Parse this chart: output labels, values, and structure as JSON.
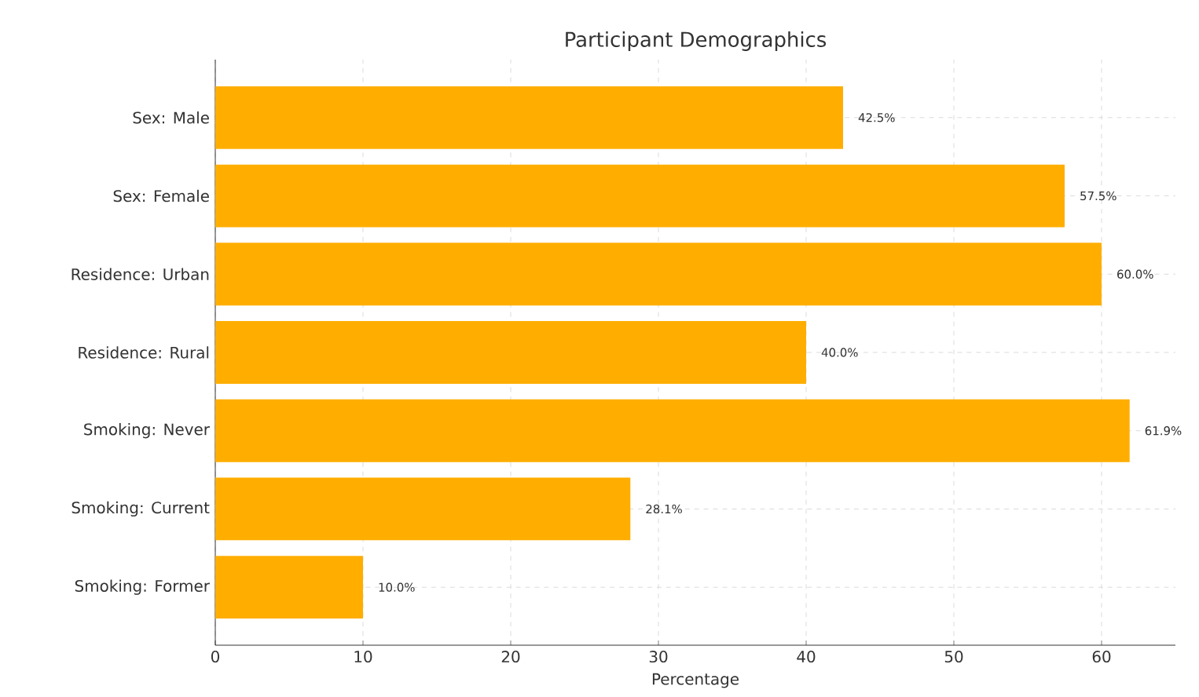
{
  "chart_data": {
    "type": "bar",
    "orientation": "horizontal",
    "title": "Participant Demographics",
    "xlabel": "Percentage",
    "categories": [
      "Sex: Male",
      "Sex: Female",
      "Residence: Urban",
      "Residence: Rural",
      "Smoking: Never",
      "Smoking: Current",
      "Smoking: Former"
    ],
    "values": [
      42.5,
      57.5,
      60.0,
      40.0,
      61.9,
      28.1,
      10.0
    ],
    "value_labels": [
      "42.5%",
      "57.5%",
      "60.0%",
      "40.0%",
      "61.9%",
      "28.1%",
      "10.0%"
    ],
    "color": "#ffae00",
    "xlim": [
      0,
      65
    ],
    "xticks": [
      0,
      10,
      20,
      30,
      40,
      50,
      60
    ],
    "grid": true
  }
}
